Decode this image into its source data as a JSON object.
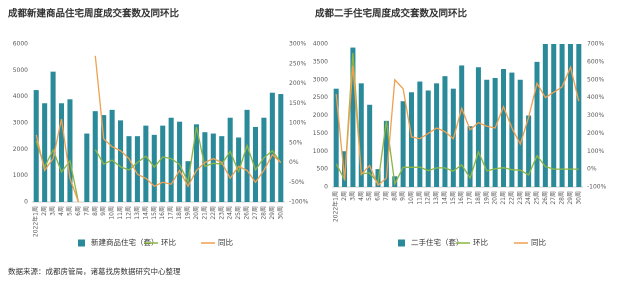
{
  "chart_data": [
    {
      "type": "combo",
      "title": "成都新建商品住宅周度成交套数及同环比",
      "categories": [
        "2022年1周",
        "2周",
        "3周",
        "4周",
        "5周",
        "6周",
        "7周",
        "8周",
        "9周",
        "10周",
        "11周",
        "12周",
        "13周",
        "14周",
        "15周",
        "16周",
        "17周",
        "18周",
        "19周",
        "20周",
        "21周",
        "22周",
        "23周",
        "24周",
        "25周",
        "26周",
        "27周",
        "28周",
        "29周",
        "30周"
      ],
      "series": [
        {
          "name": "新建商品住宅（套）",
          "type": "bar",
          "color": "#2b8a99",
          "values": [
            4250,
            3750,
            4950,
            3750,
            3900,
            0,
            2600,
            3450,
            3300,
            3500,
            3100,
            2500,
            2500,
            2900,
            2550,
            2900,
            3200,
            3050,
            1550,
            2950,
            2650,
            2600,
            2500,
            3200,
            2450,
            3500,
            2850,
            3200,
            4150,
            4100
          ]
        },
        {
          "name": "环比",
          "type": "line",
          "axis": "y2",
          "color": "#8cb543",
          "values": [
            55,
            -12,
            32,
            -24,
            4,
            -100,
            null,
            33,
            -4,
            6,
            -11,
            -19,
            0,
            16,
            -12,
            14,
            10,
            -5,
            -49,
            90,
            -10,
            -2,
            -4,
            28,
            -23,
            43,
            -19,
            12,
            30,
            -1
          ]
        },
        {
          "name": "同比",
          "type": "line",
          "axis": "y2",
          "color": "#f0a050",
          "values": [
            70,
            -20,
            10,
            110,
            -40,
            -100,
            null,
            270,
            60,
            40,
            30,
            10,
            -30,
            -40,
            -60,
            -50,
            -55,
            -20,
            -60,
            -20,
            0,
            10,
            0,
            -40,
            -10,
            -20,
            -50,
            -20,
            20,
            0
          ]
        }
      ],
      "ylim": [
        0,
        6000
      ],
      "yticks": [
        0,
        1000,
        2000,
        3000,
        4000,
        5000,
        6000
      ],
      "y2lim": [
        -100,
        300
      ],
      "y2ticks": [
        {
          "value": -100,
          "label": "-100%"
        },
        {
          "value": -50,
          "label": "-50%"
        },
        {
          "value": 0,
          "label": "0%"
        },
        {
          "value": 50,
          "label": "50%"
        },
        {
          "value": 100,
          "label": "100%"
        },
        {
          "value": 150,
          "label": "150%"
        },
        {
          "value": 200,
          "label": "200%"
        },
        {
          "value": 250,
          "label": "250%"
        },
        {
          "value": 300,
          "label": "300%"
        }
      ]
    },
    {
      "type": "combo",
      "title": "成都二手住宅周度成交套数及同环比",
      "categories": [
        "2022年1周",
        "2周",
        "3周",
        "4周",
        "5周",
        "6周",
        "7周",
        "8周",
        "9周",
        "10周",
        "11周",
        "12周",
        "13周",
        "14周",
        "15周",
        "16周",
        "17周",
        "18周",
        "19周",
        "20周",
        "21周",
        "22周",
        "23周",
        "24周",
        "25周",
        "26周",
        "27周",
        "28周",
        "29周",
        "30周"
      ],
      "series": [
        {
          "name": "二手住宅（套）",
          "type": "bar",
          "color": "#2b8a99",
          "values": [
            2750,
            1000,
            3900,
            2900,
            2300,
            500,
            1850,
            300,
            2400,
            2650,
            2950,
            2700,
            2900,
            3100,
            2750,
            3400,
            1700,
            3350,
            3000,
            3050,
            3300,
            3200,
            3000,
            2000,
            3500,
            4000,
            4000,
            4000,
            4000,
            4000
          ]
        },
        {
          "name": "环比",
          "type": "line",
          "axis": "y2",
          "color": "#8cb543",
          "values": [
            30,
            -60,
            650,
            -26,
            -21,
            -78,
            270,
            -84,
            10,
            10,
            11,
            -8,
            7,
            7,
            -11,
            24,
            -50,
            97,
            -10,
            2,
            8,
            -3,
            -6,
            -33,
            75,
            14,
            0,
            0,
            0,
            0
          ]
        },
        {
          "name": "同比",
          "type": "line",
          "axis": "y2",
          "color": "#f0a050",
          "values": [
            420,
            -60,
            580,
            -30,
            20,
            -90,
            -50,
            500,
            450,
            180,
            170,
            200,
            230,
            210,
            170,
            340,
            220,
            260,
            240,
            230,
            350,
            230,
            140,
            290,
            480,
            400,
            430,
            460,
            570,
            380
          ]
        }
      ],
      "ylim": [
        0,
        4000
      ],
      "yticks": [
        0,
        500,
        1000,
        1500,
        2000,
        2500,
        3000,
        3500,
        4000
      ],
      "y2lim": [
        -100,
        700
      ],
      "y2ticks": [
        {
          "value": -100,
          "label": "-100%"
        },
        {
          "value": 0,
          "label": "0%"
        },
        {
          "value": 100,
          "label": "100%"
        },
        {
          "value": 200,
          "label": "200%"
        },
        {
          "value": 300,
          "label": "300%"
        },
        {
          "value": 400,
          "label": "400%"
        },
        {
          "value": 500,
          "label": "500%"
        },
        {
          "value": 600,
          "label": "600%"
        },
        {
          "value": 700,
          "label": "700%"
        }
      ]
    }
  ],
  "source": "数据来源：成都房管局，诸葛找房数据研究中心整理"
}
